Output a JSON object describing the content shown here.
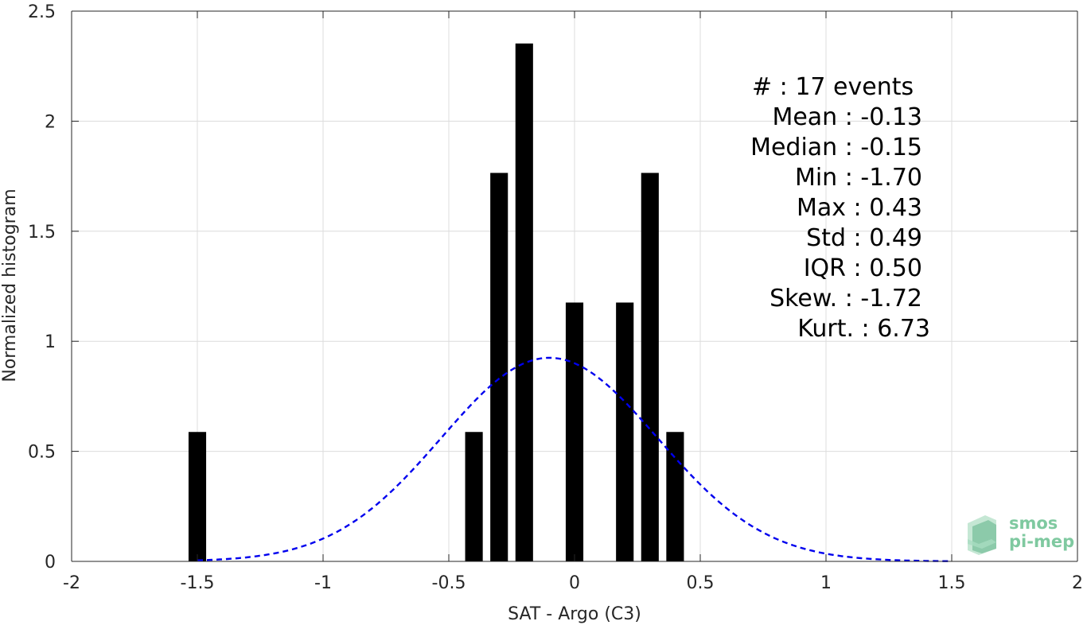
{
  "chart_data": {
    "type": "bar",
    "xlabel": "SAT - Argo (C3)",
    "ylabel": "Normalized histogram",
    "xlim": [
      -2,
      2
    ],
    "ylim": [
      0,
      2.5
    ],
    "xticks": [
      -2,
      -1.5,
      -1,
      -0.5,
      0,
      0.5,
      1,
      1.5,
      2
    ],
    "xtick_labels": [
      "-2",
      "-1.5",
      "-1",
      "-0.5",
      "0",
      "0.5",
      "1",
      "1.5",
      "2"
    ],
    "yticks": [
      0,
      0.5,
      1,
      1.5,
      2,
      2.5
    ],
    "ytick_labels": [
      "0",
      "0.5",
      "1",
      "1.5",
      "2",
      "2.5"
    ],
    "grid": true,
    "bar_width": 0.07,
    "bars": [
      {
        "x": -1.5,
        "value": 0.588
      },
      {
        "x": -0.4,
        "value": 0.588
      },
      {
        "x": -0.3,
        "value": 1.765
      },
      {
        "x": -0.2,
        "value": 2.353
      },
      {
        "x": 0.0,
        "value": 1.176
      },
      {
        "x": 0.2,
        "value": 1.176
      },
      {
        "x": 0.3,
        "value": 1.765
      },
      {
        "x": 0.4,
        "value": 0.588
      }
    ],
    "fit_curve": {
      "style": "dashed",
      "color": "#0000ee",
      "mean": -0.1,
      "std": 0.43,
      "peak": 0.925,
      "x_range": [
        -1.5,
        1.5
      ]
    },
    "annotations": [
      {
        "label": "#  : 17 events",
        "align": "start"
      },
      {
        "label": "Mean : -0.13",
        "align": "end"
      },
      {
        "label": "Median : -0.15",
        "align": "end"
      },
      {
        "label": "Min : -1.70",
        "align": "end"
      },
      {
        "label": "Max : 0.43",
        "align": "end"
      },
      {
        "label": "Std : 0.49",
        "align": "end"
      },
      {
        "label": "IQR : 0.50",
        "align": "end"
      },
      {
        "label": "Skew. : -1.72",
        "align": "end"
      },
      {
        "label": "Kurt. : 6.73",
        "align": "end"
      }
    ]
  },
  "logo": {
    "line1": "smos",
    "line2": "pi-mep"
  },
  "colors": {
    "bar": "#000000",
    "curve": "#0000ee",
    "grid": "#dcdcdc",
    "axis": "#262626",
    "logo": "#7fc9a0"
  }
}
